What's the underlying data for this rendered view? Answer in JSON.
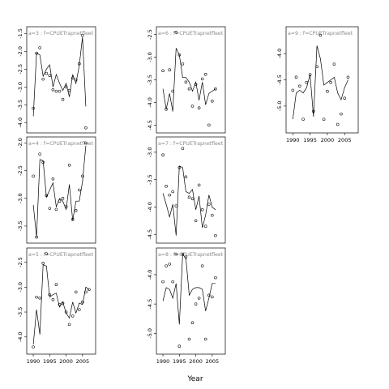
{
  "chart_data": {
    "type": "scatter",
    "xlabel": "Year",
    "x_ticks": [
      1990,
      1995,
      2000,
      2005
    ],
    "panels": [
      {
        "strip": "a=3 : f=CPUETrapnetfleet",
        "y_ticks": [
          -1.5,
          -2.0,
          -2.5,
          -3.0,
          -3.5,
          -4.0
        ],
        "ylim": [
          -4.2,
          -1.4
        ],
        "points": [
          [
            1990,
            -3.6
          ],
          [
            1991,
            -2.05
          ],
          [
            1992,
            -1.9
          ],
          [
            1993,
            -2.78
          ],
          [
            1994,
            -2.62
          ],
          [
            1995,
            -2.68
          ],
          [
            1996,
            -3.08
          ],
          [
            1997,
            -3.12
          ],
          [
            1998,
            -3.12
          ],
          [
            1999,
            -3.35
          ],
          [
            2000,
            -3.0
          ],
          [
            2001,
            -3.1
          ],
          [
            2002,
            -2.75
          ],
          [
            2003,
            -2.8
          ],
          [
            2004,
            -2.35
          ],
          [
            2005,
            -1.55
          ],
          [
            2006,
            -4.15
          ]
        ],
        "fit": [
          [
            1990,
            -3.82
          ],
          [
            1991,
            -2.05
          ],
          [
            1992,
            -2.1
          ],
          [
            1993,
            -2.7
          ],
          [
            1994,
            -2.5
          ],
          [
            1995,
            -2.38
          ],
          [
            1996,
            -3.0
          ],
          [
            1997,
            -2.65
          ],
          [
            1998,
            -2.9
          ],
          [
            1999,
            -3.1
          ],
          [
            2000,
            -2.9
          ],
          [
            2001,
            -3.28
          ],
          [
            2002,
            -2.65
          ],
          [
            2003,
            -2.9
          ],
          [
            2004,
            -2.4
          ],
          [
            2005,
            -1.6
          ],
          [
            2006,
            -3.55
          ]
        ]
      },
      {
        "strip": "a=6 : f=CPUETrapnetfleet",
        "y_ticks": [
          -2.5,
          -3.0,
          -3.5,
          -4.0,
          -4.5
        ],
        "ylim": [
          -4.6,
          -2.4
        ],
        "points": [
          [
            1990,
            -3.3
          ],
          [
            1991,
            -4.15
          ],
          [
            1992,
            -3.28
          ],
          [
            1993,
            -3.75
          ],
          [
            1994,
            -2.45
          ],
          [
            1995,
            -2.95
          ],
          [
            1996,
            -3.15
          ],
          [
            1997,
            -3.55
          ],
          [
            1998,
            -3.7
          ],
          [
            1999,
            -4.08
          ],
          [
            2000,
            -3.6
          ],
          [
            2001,
            -4.12
          ],
          [
            2002,
            -3.48
          ],
          [
            2003,
            -3.38
          ],
          [
            2004,
            -4.5
          ],
          [
            2005,
            -3.97
          ],
          [
            2006,
            -3.7
          ]
        ],
        "fit": [
          [
            1990,
            -3.7
          ],
          [
            1991,
            -4.15
          ],
          [
            1992,
            -3.8
          ],
          [
            1993,
            -4.2
          ],
          [
            1994,
            -2.8
          ],
          [
            1995,
            -2.95
          ],
          [
            1996,
            -3.45
          ],
          [
            1997,
            -3.45
          ],
          [
            1998,
            -3.55
          ],
          [
            1999,
            -3.75
          ],
          [
            2000,
            -3.55
          ],
          [
            2001,
            -3.95
          ],
          [
            2002,
            -3.55
          ],
          [
            2003,
            -4.05
          ],
          [
            2004,
            -3.8
          ],
          [
            2005,
            -3.75
          ],
          [
            2006,
            -3.7
          ]
        ]
      },
      {
        "strip": "a=9 : f=CPUETrapnetfleet",
        "y_ticks": [
          -4.0,
          -4.5,
          -5.0
        ],
        "ylim": [
          -5.45,
          -3.55
        ],
        "points": [
          [
            1990,
            -4.7
          ],
          [
            1991,
            -4.45
          ],
          [
            1992,
            -4.62
          ],
          [
            1993,
            -5.25
          ],
          [
            1994,
            -4.55
          ],
          [
            1995,
            -4.4
          ],
          [
            1996,
            -5.1
          ],
          [
            1997,
            -4.25
          ],
          [
            1998,
            -3.65
          ],
          [
            1999,
            -5.25
          ],
          [
            2000,
            -4.72
          ],
          [
            2001,
            -4.55
          ],
          [
            2002,
            -4.2
          ],
          [
            2003,
            -5.35
          ],
          [
            2004,
            -5.15
          ],
          [
            2005,
            -4.85
          ],
          [
            2006,
            -4.45
          ]
        ],
        "fit": [
          [
            1990,
            -5.25
          ],
          [
            1991,
            -4.75
          ],
          [
            1992,
            -4.7
          ],
          [
            1993,
            -4.75
          ],
          [
            1994,
            -4.65
          ],
          [
            1995,
            -4.4
          ],
          [
            1996,
            -5.2
          ],
          [
            1997,
            -3.85
          ],
          [
            1998,
            -4.1
          ],
          [
            1999,
            -4.6
          ],
          [
            2000,
            -4.55
          ],
          [
            2001,
            -4.5
          ],
          [
            2002,
            -4.45
          ],
          [
            2003,
            -4.75
          ],
          [
            2004,
            -4.88
          ],
          [
            2005,
            -4.65
          ],
          [
            2006,
            -4.5
          ]
        ]
      },
      {
        "strip": "a=4 : f=CPUETrapnetfleet",
        "y_ticks": [
          -2.0,
          -2.5,
          -3.0,
          -3.5
        ],
        "ylim": [
          -3.75,
          -1.95
        ],
        "points": [
          [
            1990,
            -2.6
          ],
          [
            1991,
            -3.7
          ],
          [
            1992,
            -2.2
          ],
          [
            1993,
            -2.35
          ],
          [
            1994,
            -2.95
          ],
          [
            1995,
            -3.18
          ],
          [
            1996,
            -2.65
          ],
          [
            1997,
            -3.2
          ],
          [
            1998,
            -3.05
          ],
          [
            1999,
            -3.0
          ],
          [
            2000,
            -3.15
          ],
          [
            2001,
            -2.4
          ],
          [
            2002,
            -3.38
          ],
          [
            2003,
            -3.22
          ],
          [
            2004,
            -2.85
          ],
          [
            2005,
            -2.6
          ],
          [
            2006,
            -2.0
          ]
        ],
        "fit": [
          [
            1990,
            -3.12
          ],
          [
            1991,
            -3.7
          ],
          [
            1992,
            -2.3
          ],
          [
            1993,
            -2.32
          ],
          [
            1994,
            -2.98
          ],
          [
            1995,
            -2.85
          ],
          [
            1996,
            -2.72
          ],
          [
            1997,
            -3.15
          ],
          [
            1998,
            -3.0
          ],
          [
            1999,
            -3.05
          ],
          [
            2000,
            -3.2
          ],
          [
            2001,
            -2.75
          ],
          [
            2002,
            -3.4
          ],
          [
            2003,
            -3.05
          ],
          [
            2004,
            -3.05
          ],
          [
            2005,
            -2.7
          ],
          [
            2006,
            -2.05
          ]
        ]
      },
      {
        "strip": "a=7 : f=CPUETrapnetfleet",
        "y_ticks": [
          -3.0,
          -3.5,
          -4.0,
          -4.5
        ],
        "ylim": [
          -4.6,
          -2.78
        ],
        "points": [
          [
            1990,
            -3.05
          ],
          [
            1991,
            -3.62
          ],
          [
            1992,
            -3.78
          ],
          [
            1993,
            -3.72
          ],
          [
            1994,
            -3.98
          ],
          [
            1995,
            -3.28
          ],
          [
            1996,
            -2.93
          ],
          [
            1997,
            -3.45
          ],
          [
            1998,
            -3.82
          ],
          [
            1999,
            -3.85
          ],
          [
            2000,
            -4.25
          ],
          [
            2001,
            -3.6
          ],
          [
            2002,
            -4.05
          ],
          [
            2003,
            -4.35
          ],
          [
            2004,
            -3.95
          ],
          [
            2005,
            -4.15
          ],
          [
            2006,
            -4.52
          ]
        ],
        "fit": [
          [
            1990,
            -3.75
          ],
          [
            1991,
            -3.95
          ],
          [
            1992,
            -4.18
          ],
          [
            1993,
            -3.95
          ],
          [
            1994,
            -4.52
          ],
          [
            1995,
            -3.25
          ],
          [
            1996,
            -3.28
          ],
          [
            1997,
            -3.72
          ],
          [
            1998,
            -3.75
          ],
          [
            1999,
            -3.68
          ],
          [
            2000,
            -4.05
          ],
          [
            2001,
            -3.8
          ],
          [
            2002,
            -4.38
          ],
          [
            2003,
            -4.15
          ],
          [
            2004,
            -3.78
          ],
          [
            2005,
            -4.0
          ],
          [
            2006,
            -4.05
          ]
        ]
      },
      {
        "strip": "a=5 : f=CPUETrapnetfleet",
        "y_ticks": [
          -2.5,
          -3.0,
          -3.5,
          -4.0
        ],
        "ylim": [
          -4.28,
          -2.28
        ],
        "points": [
          [
            1990,
            -4.2
          ],
          [
            1991,
            -3.2
          ],
          [
            1992,
            -3.22
          ],
          [
            1993,
            -2.52
          ],
          [
            1994,
            -2.33
          ],
          [
            1995,
            -3.15
          ],
          [
            1996,
            -3.25
          ],
          [
            1997,
            -2.95
          ],
          [
            1998,
            -3.35
          ],
          [
            1999,
            -3.32
          ],
          [
            2000,
            -3.5
          ],
          [
            2001,
            -3.75
          ],
          [
            2002,
            -3.58
          ],
          [
            2003,
            -3.1
          ],
          [
            2004,
            -3.45
          ],
          [
            2005,
            -3.3
          ],
          [
            2006,
            -3.1
          ],
          [
            2007,
            -3.05
          ]
        ],
        "fit": [
          [
            1990,
            -4.15
          ],
          [
            1991,
            -3.45
          ],
          [
            1992,
            -3.95
          ],
          [
            1993,
            -2.55
          ],
          [
            1994,
            -2.58
          ],
          [
            1995,
            -3.2
          ],
          [
            1996,
            -3.15
          ],
          [
            1997,
            -3.12
          ],
          [
            1998,
            -3.4
          ],
          [
            1999,
            -3.3
          ],
          [
            2000,
            -3.52
          ],
          [
            2001,
            -3.62
          ],
          [
            2002,
            -3.3
          ],
          [
            2003,
            -3.52
          ],
          [
            2004,
            -3.32
          ],
          [
            2005,
            -3.35
          ],
          [
            2006,
            -3.0
          ],
          [
            2007,
            -3.05
          ]
        ]
      },
      {
        "strip": "a=8 : f=CPUETrapnetfleet",
        "y_ticks": [
          -4.0,
          -4.5,
          -5.0
        ],
        "ylim": [
          -5.3,
          -3.6
        ],
        "points": [
          [
            1990,
            -4.12
          ],
          [
            1991,
            -3.85
          ],
          [
            1992,
            -3.82
          ],
          [
            1993,
            -4.12
          ],
          [
            1994,
            -3.65
          ],
          [
            1995,
            -5.22
          ],
          [
            1996,
            -3.65
          ],
          [
            1997,
            -3.7
          ],
          [
            1998,
            -5.1
          ],
          [
            1999,
            -4.82
          ],
          [
            2000,
            -4.5
          ],
          [
            2001,
            -4.4
          ],
          [
            2002,
            -3.85
          ],
          [
            2003,
            -5.1
          ],
          [
            2004,
            -4.35
          ],
          [
            2005,
            -4.38
          ],
          [
            2006,
            -4.05
          ]
        ],
        "fit": [
          [
            1990,
            -4.45
          ],
          [
            1991,
            -4.22
          ],
          [
            1992,
            -4.25
          ],
          [
            1993,
            -4.4
          ],
          [
            1994,
            -4.15
          ],
          [
            1995,
            -4.85
          ],
          [
            1996,
            -3.65
          ],
          [
            1997,
            -3.72
          ],
          [
            1998,
            -4.35
          ],
          [
            1999,
            -4.25
          ],
          [
            2000,
            -4.22
          ],
          [
            2001,
            -4.22
          ],
          [
            2002,
            -4.25
          ],
          [
            2003,
            -4.62
          ],
          [
            2004,
            -4.4
          ],
          [
            2005,
            -4.15
          ],
          [
            2006,
            -4.15
          ]
        ]
      }
    ]
  }
}
